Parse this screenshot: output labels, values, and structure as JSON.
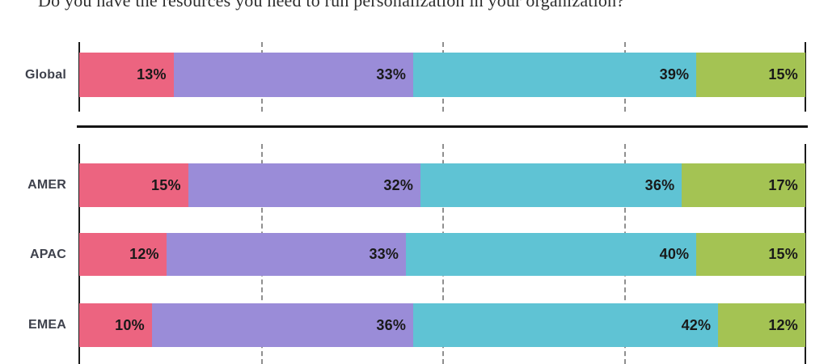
{
  "page": {
    "background": "#ffffff"
  },
  "chart_data": {
    "type": "bar",
    "stacked": true,
    "orientation": "horizontal",
    "title": "Do you have the resources you need to run personalization in your organization?",
    "xlabel": "",
    "ylabel": "",
    "xlim": [
      0,
      100
    ],
    "gridlines_percent": [
      25,
      50,
      75
    ],
    "gridline_style": "dashed",
    "legend": "none",
    "value_suffix": "%",
    "categories": [
      "Global",
      "AMER",
      "APAC",
      "EMEA"
    ],
    "groups": [
      {
        "label": "Global",
        "values": [
          13,
          33,
          39,
          15
        ]
      },
      {
        "label": "AMER",
        "values": [
          15,
          32,
          36,
          17
        ]
      },
      {
        "label": "APAC",
        "values": [
          12,
          33,
          40,
          15
        ]
      },
      {
        "label": "EMEA",
        "values": [
          10,
          36,
          42,
          12
        ]
      }
    ],
    "segment_colors": [
      "#ec6480",
      "#9a8cd8",
      "#5fc3d4",
      "#a4c353"
    ],
    "colors": {
      "axis": "#1a1a1a",
      "gridline": "#8f8f8f",
      "divider": "#141414",
      "row_label": "#3e414c",
      "value_label": "#191919",
      "title": "#2e2e2e"
    }
  }
}
